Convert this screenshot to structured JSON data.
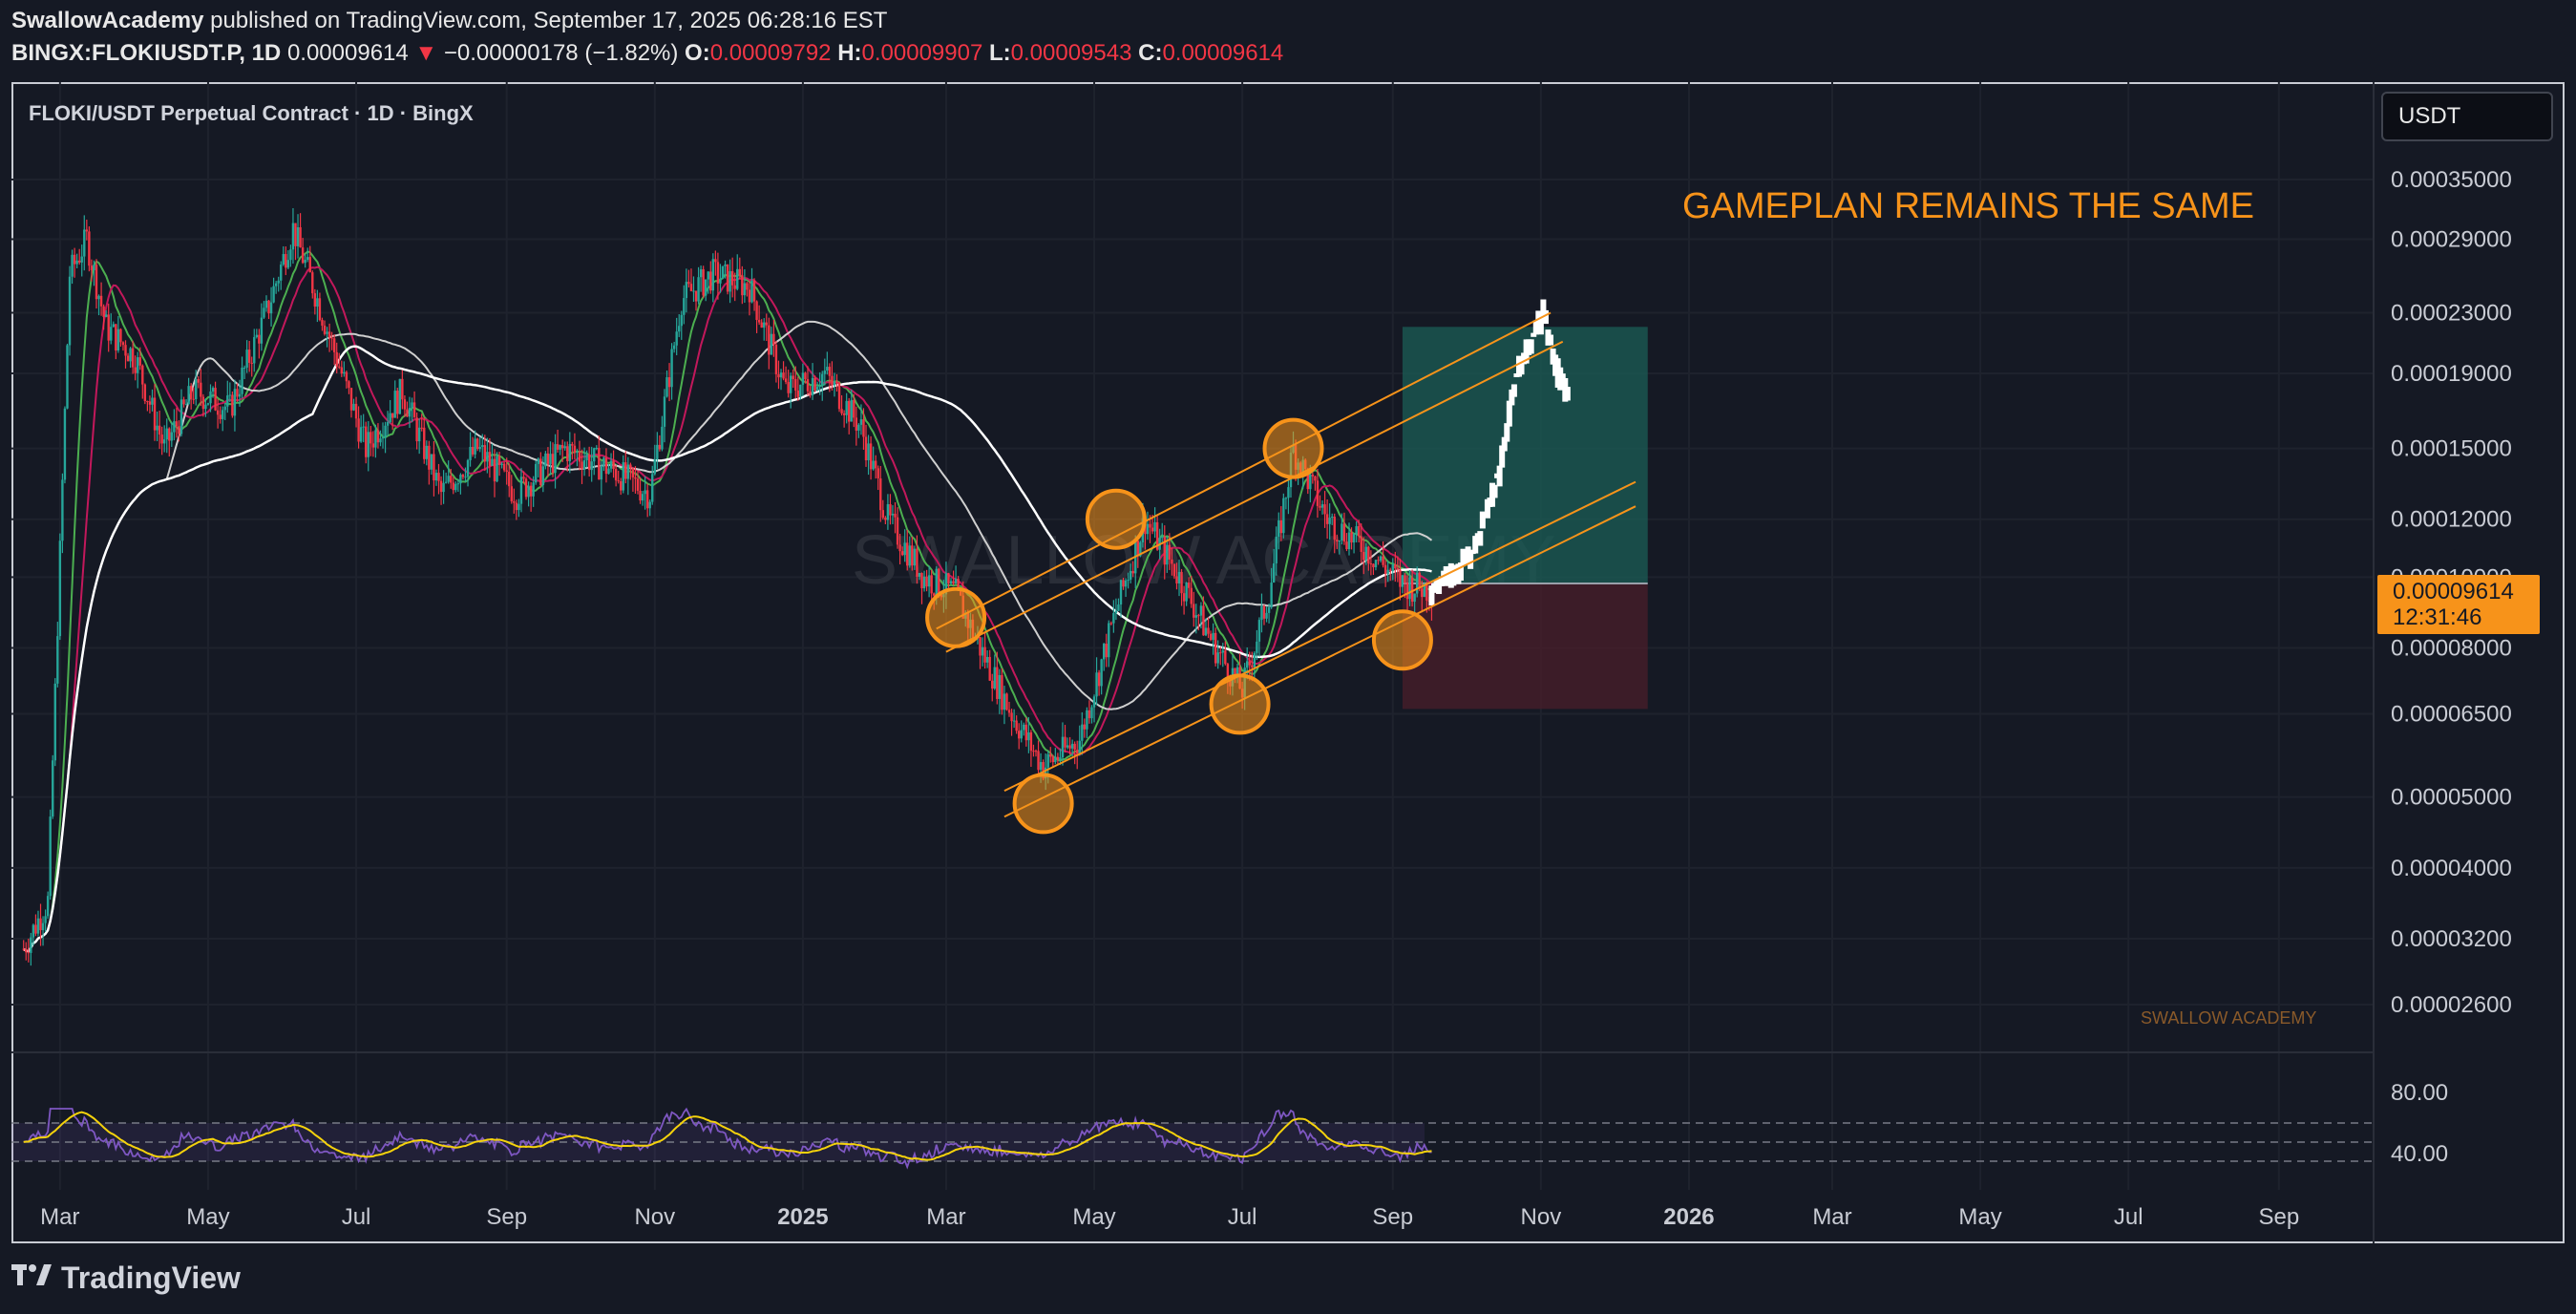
{
  "header": {
    "author": "SwallowAcademy",
    "published": "published on TradingView.com, September 17, 2025 06:28:16 EST",
    "symbol": "BINGX:FLOKIUSDT.P, 1D",
    "last": "0.00009614",
    "arrow": "▼",
    "change": "−0.00000178 (−1.82%)",
    "open_label": "O:",
    "open": "0.00009792",
    "high_label": "H:",
    "high": "0.00009907",
    "low_label": "L:",
    "low": "0.00009543",
    "close_label": "C:",
    "close": "0.00009614"
  },
  "chart_title": "FLOKI/USDT Perpetual Contract · 1D · BingX",
  "currency_button": "USDT",
  "price_tag": {
    "price": "0.00009614",
    "countdown": "12:31:46"
  },
  "footer": {
    "brand": "TradingView",
    "logo": "tradingview-logo"
  },
  "colors": {
    "bg": "#151924",
    "up": "#26a69a",
    "down": "#f23645",
    "accent": "#f7931a",
    "rsi": "#7e57c2",
    "rsi_ma": "#f5d20c"
  },
  "chart_data": {
    "type": "candlestick",
    "scale": "log",
    "annotation": "GAMEPLAN REMAINS THE SAME",
    "watermark": "SWALLOW ACADEMY",
    "watermark_center": "SWALLOW ACADEMY",
    "y_ticks": [
      "0.00035000",
      "0.00029000",
      "0.00023000",
      "0.00019000",
      "0.00015000",
      "0.00012000",
      "0.00010000",
      "0.00008000",
      "0.00006500",
      "0.00005000",
      "0.00004000",
      "0.00003200",
      "0.00002600"
    ],
    "x_ticks": [
      "Mar",
      "May",
      "Jul",
      "Sep",
      "Nov",
      "2025",
      "Mar",
      "May",
      "Jul",
      "Sep",
      "Nov",
      "2026",
      "Mar",
      "May",
      "Jul",
      "Sep"
    ],
    "rsi_ticks": [
      "80.00",
      "40.00"
    ],
    "close_path": [
      [
        "2024-02-15",
        3.1e-05
      ],
      [
        "2024-02-25",
        3.6e-05
      ],
      [
        "2024-03-05",
        0.00026
      ],
      [
        "2024-03-12",
        0.00029
      ],
      [
        "2024-03-20",
        0.00022
      ],
      [
        "2024-04-01",
        0.0002
      ],
      [
        "2024-04-13",
        0.00015
      ],
      [
        "2024-04-25",
        0.00018
      ],
      [
        "2024-05-10",
        0.00017
      ],
      [
        "2024-05-25",
        0.00023
      ],
      [
        "2024-06-05",
        0.0003
      ],
      [
        "2024-06-15",
        0.00024
      ],
      [
        "2024-06-25",
        0.00019
      ],
      [
        "2024-07-05",
        0.00015
      ],
      [
        "2024-07-20",
        0.00018
      ],
      [
        "2024-08-05",
        0.00013
      ],
      [
        "2024-08-20",
        0.00015
      ],
      [
        "2024-09-05",
        0.00013
      ],
      [
        "2024-09-25",
        0.00015
      ],
      [
        "2024-10-15",
        0.00014
      ],
      [
        "2024-10-30",
        0.00013
      ],
      [
        "2024-11-12",
        0.00024
      ],
      [
        "2024-11-25",
        0.00026
      ],
      [
        "2024-12-10",
        0.00025
      ],
      [
        "2024-12-25",
        0.00018
      ],
      [
        "2025-01-10",
        0.00019
      ],
      [
        "2025-01-25",
        0.00016
      ],
      [
        "2025-02-05",
        0.00012
      ],
      [
        "2025-02-20",
        0.0001
      ],
      [
        "2025-03-05",
        9.5e-05
      ],
      [
        "2025-03-15",
        8e-05
      ],
      [
        "2025-03-28",
        6.5e-05
      ],
      [
        "2025-04-10",
        5.5e-05
      ],
      [
        "2025-04-25",
        6e-05
      ],
      [
        "2025-05-10",
        9e-05
      ],
      [
        "2025-05-22",
        0.00012
      ],
      [
        "2025-06-05",
        0.0001
      ],
      [
        "2025-06-20",
        8e-05
      ],
      [
        "2025-07-01",
        7e-05
      ],
      [
        "2025-07-12",
        9.5e-05
      ],
      [
        "2025-07-22",
        0.00015
      ],
      [
        "2025-08-05",
        0.00012
      ],
      [
        "2025-08-20",
        0.00011
      ],
      [
        "2025-09-05",
        9.8e-05
      ],
      [
        "2025-09-17",
        9.614e-05
      ]
    ],
    "projection_path": [
      [
        "2025-09-17",
        9.6e-05
      ],
      [
        "2025-09-25",
        0.0001
      ],
      [
        "2025-10-05",
        0.00011
      ],
      [
        "2025-10-15",
        0.00014
      ],
      [
        "2025-10-22",
        0.00019
      ],
      [
        "2025-10-28",
        0.00021
      ],
      [
        "2025-11-02",
        0.00023
      ],
      [
        "2025-11-08",
        0.00019
      ],
      [
        "2025-11-12",
        0.00018
      ]
    ],
    "channel_upper": [
      [
        "2025-02-25",
        8.5e-05
      ],
      [
        "2025-11-05",
        0.00023
      ]
    ],
    "channel_lower": [
      [
        "2025-03-25",
        4.7e-05
      ],
      [
        "2025-12-10",
        0.000125
      ]
    ],
    "pivots": [
      [
        "2025-03-05",
        8.8e-05
      ],
      [
        "2025-04-10",
        4.9e-05
      ],
      [
        "2025-05-10",
        0.00012
      ],
      [
        "2025-06-30",
        6.7e-05
      ],
      [
        "2025-07-22",
        0.00015
      ],
      [
        "2025-09-05",
        8.2e-05
      ]
    ],
    "position": {
      "entry": 9.8e-05,
      "target": 0.00022,
      "stop": 6.6e-05,
      "start": "2025-09-05",
      "end": "2025-12-15"
    }
  }
}
